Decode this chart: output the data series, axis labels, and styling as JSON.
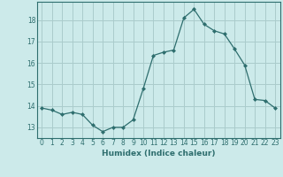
{
  "x": [
    0,
    1,
    2,
    3,
    4,
    5,
    6,
    7,
    8,
    9,
    10,
    11,
    12,
    13,
    14,
    15,
    16,
    17,
    18,
    19,
    20,
    21,
    22,
    23
  ],
  "y": [
    13.9,
    13.8,
    13.6,
    13.7,
    13.6,
    13.1,
    12.8,
    13.0,
    13.0,
    13.35,
    14.8,
    16.35,
    16.5,
    16.6,
    18.1,
    18.5,
    17.8,
    17.5,
    17.35,
    16.65,
    15.9,
    14.3,
    14.25,
    13.9
  ],
  "line_color": "#2e6e6e",
  "marker": "D",
  "marker_size": 2.0,
  "bg_color": "#cceaea",
  "grid_color": "#aacccc",
  "xlabel": "Humidex (Indice chaleur)",
  "ylabel_ticks": [
    13,
    14,
    15,
    16,
    17,
    18
  ],
  "xlim": [
    -0.5,
    23.5
  ],
  "ylim": [
    12.5,
    18.85
  ],
  "tick_fontsize": 5.5,
  "xlabel_fontsize": 6.5
}
